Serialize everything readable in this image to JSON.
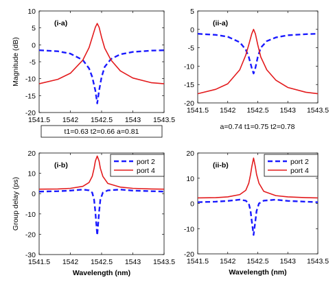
{
  "chart_data": [
    {
      "id": "i-a",
      "type": "line",
      "panel_label": "(i-a)",
      "ylabel": "Magnitude (dB)",
      "xlabel": "",
      "xlim": [
        1541.5,
        1543.5
      ],
      "ylim": [
        -20,
        10
      ],
      "xticks": [
        "1541.5",
        "1542",
        "1542.5",
        "1543",
        "1543.5"
      ],
      "yticks": [
        "-20",
        "-15",
        "-10",
        "-5",
        "0",
        "5",
        "10"
      ],
      "caption": "t1=0.63 t2=0.66 a=0.81",
      "series": [
        {
          "key": "port2",
          "color": "#1a1aff",
          "dashed": true,
          "x": [
            1541.5,
            1541.8,
            1542.0,
            1542.2,
            1542.3,
            1542.35,
            1542.4,
            1542.43,
            1542.46,
            1542.5,
            1542.55,
            1542.65,
            1542.8,
            1543.0,
            1543.3,
            1543.5
          ],
          "y": [
            -1.6,
            -1.9,
            -2.6,
            -4.5,
            -7.0,
            -9.5,
            -13.5,
            -17.3,
            -13.5,
            -9.5,
            -6.5,
            -4.2,
            -2.8,
            -2.1,
            -1.7,
            -1.6
          ]
        },
        {
          "key": "port4",
          "color": "#e31a1c",
          "dashed": false,
          "x": [
            1541.5,
            1541.8,
            1542.0,
            1542.2,
            1542.3,
            1542.35,
            1542.4,
            1542.43,
            1542.46,
            1542.5,
            1542.55,
            1542.65,
            1542.8,
            1543.0,
            1543.3,
            1543.5
          ],
          "y": [
            -11.5,
            -10.2,
            -8.4,
            -4.5,
            -0.8,
            2.2,
            5.2,
            6.3,
            5.2,
            2.2,
            -1.0,
            -4.5,
            -7.7,
            -9.8,
            -11.2,
            -11.5
          ]
        }
      ]
    },
    {
      "id": "ii-a",
      "type": "line",
      "panel_label": "(ii-a)",
      "ylabel": "",
      "xlabel": "",
      "xlim": [
        1541.5,
        1543.5
      ],
      "ylim": [
        -20,
        5
      ],
      "xticks": [
        "1541.5",
        "1542",
        "1542.5",
        "1543",
        "1543.5"
      ],
      "yticks": [
        "-20",
        "-15",
        "-10",
        "-5",
        "0",
        "5"
      ],
      "caption": "a=0.74 t1=0.75 t2=0.78",
      "series": [
        {
          "key": "port2",
          "color": "#1a1aff",
          "dashed": true,
          "x": [
            1541.5,
            1541.8,
            1542.0,
            1542.2,
            1542.3,
            1542.35,
            1542.4,
            1542.43,
            1542.46,
            1542.5,
            1542.55,
            1542.65,
            1542.8,
            1543.0,
            1543.3,
            1543.5
          ],
          "y": [
            -1.2,
            -1.5,
            -2.0,
            -3.5,
            -5.5,
            -7.5,
            -10.5,
            -12.0,
            -10.5,
            -7.5,
            -5.0,
            -3.2,
            -2.2,
            -1.6,
            -1.3,
            -1.2
          ]
        },
        {
          "key": "port4",
          "color": "#e31a1c",
          "dashed": false,
          "x": [
            1541.5,
            1541.8,
            1542.0,
            1542.2,
            1542.3,
            1542.35,
            1542.4,
            1542.43,
            1542.46,
            1542.5,
            1542.55,
            1542.65,
            1542.8,
            1543.0,
            1543.3,
            1543.5
          ],
          "y": [
            -17.5,
            -16.3,
            -14.8,
            -11.0,
            -7.0,
            -4.2,
            -1.2,
            0.0,
            -1.2,
            -4.2,
            -7.5,
            -11.0,
            -13.8,
            -15.8,
            -17.1,
            -17.5
          ]
        }
      ]
    },
    {
      "id": "i-b",
      "type": "line",
      "panel_label": "(i-b)",
      "ylabel": "Group delay (ps)",
      "xlabel": "Wavelength (nm)",
      "xlim": [
        1541.5,
        1543.5
      ],
      "ylim": [
        -30,
        20
      ],
      "xticks": [
        "1541.5",
        "1542",
        "1542.5",
        "1543",
        "1543.5"
      ],
      "yticks": [
        "-30",
        "-20",
        "-10",
        "0",
        "10",
        "20"
      ],
      "legend": {
        "position": "top-right",
        "entries": [
          "port 2",
          "port 4"
        ]
      },
      "series": [
        {
          "key": "port2",
          "name": "port 2",
          "color": "#1a1aff",
          "dashed": true,
          "x": [
            1541.5,
            1541.8,
            1542.0,
            1542.2,
            1542.3,
            1542.35,
            1542.38,
            1542.4,
            1542.43,
            1542.46,
            1542.48,
            1542.52,
            1542.6,
            1542.8,
            1543.0,
            1543.3,
            1543.5
          ],
          "y": [
            1.0,
            1.2,
            1.5,
            2.0,
            1.6,
            0.5,
            -3.0,
            -9.0,
            -20.5,
            -9.0,
            -3.0,
            0.5,
            1.6,
            2.0,
            1.5,
            1.2,
            1.0
          ]
        },
        {
          "key": "port4",
          "name": "port 4",
          "color": "#e31a1c",
          "dashed": false,
          "x": [
            1541.5,
            1541.8,
            1542.0,
            1542.2,
            1542.3,
            1542.35,
            1542.38,
            1542.4,
            1542.43,
            1542.46,
            1542.48,
            1542.52,
            1542.6,
            1542.8,
            1543.0,
            1543.3,
            1543.5
          ],
          "y": [
            2.2,
            2.3,
            2.6,
            3.6,
            5.5,
            8.5,
            12.5,
            16.0,
            18.5,
            16.0,
            12.5,
            8.5,
            5.0,
            3.2,
            2.6,
            2.3,
            2.2
          ]
        }
      ]
    },
    {
      "id": "ii-b",
      "type": "line",
      "panel_label": "(ii-b)",
      "ylabel": "",
      "xlabel": "Wavelength (nm)",
      "xlim": [
        1541.5,
        1543.5
      ],
      "ylim": [
        -20,
        20
      ],
      "xticks": [
        "1541.5",
        "1542",
        "1542.5",
        "1543",
        "1543.5"
      ],
      "yticks": [
        "-20",
        "-10",
        "0",
        "10",
        "20"
      ],
      "legend": {
        "position": "top-right",
        "entries": [
          "port 2",
          "port 4"
        ]
      },
      "series": [
        {
          "key": "port2",
          "name": "port 2",
          "color": "#1a1aff",
          "dashed": true,
          "x": [
            1541.5,
            1541.8,
            1542.0,
            1542.2,
            1542.3,
            1542.35,
            1542.38,
            1542.4,
            1542.43,
            1542.46,
            1542.48,
            1542.52,
            1542.6,
            1542.8,
            1543.0,
            1543.3,
            1543.5
          ],
          "y": [
            0.5,
            0.7,
            1.0,
            1.5,
            1.1,
            0.0,
            -3.0,
            -7.0,
            -12.5,
            -7.0,
            -3.0,
            0.0,
            1.1,
            1.5,
            1.0,
            0.7,
            0.5
          ]
        },
        {
          "key": "port4",
          "name": "port 4",
          "color": "#e31a1c",
          "dashed": false,
          "x": [
            1541.5,
            1541.8,
            1542.0,
            1542.2,
            1542.3,
            1542.35,
            1542.38,
            1542.4,
            1542.43,
            1542.46,
            1542.48,
            1542.52,
            1542.6,
            1542.8,
            1543.0,
            1543.3,
            1543.5
          ],
          "y": [
            2.2,
            2.3,
            2.6,
            3.5,
            5.2,
            8.0,
            11.5,
            14.5,
            18.0,
            14.5,
            11.5,
            8.0,
            4.8,
            3.1,
            2.6,
            2.3,
            2.2
          ]
        }
      ]
    }
  ]
}
